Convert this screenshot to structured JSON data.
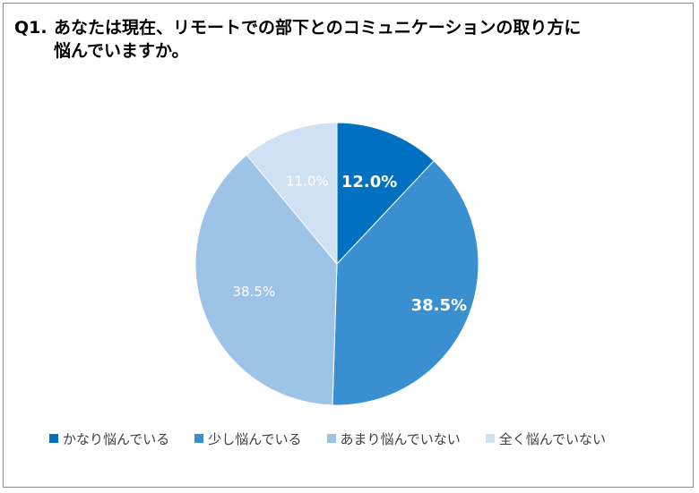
{
  "chart_data": {
    "type": "pie",
    "title_prefix": "Q1.",
    "title_line1": "あなたは現在、リモートでの部下とのコミュニケーションの取り方に",
    "title_line2": "悩んでいますか。",
    "slices": [
      {
        "label": "かなり悩んでいる",
        "value": 12.0,
        "value_label": "12.0%",
        "color": "#0070c0",
        "label_color": "#ffffff",
        "label_bold": true
      },
      {
        "label": "少し悩んでいる",
        "value": 38.5,
        "value_label": "38.5%",
        "color": "#3a8fd0",
        "label_color": "#ffffff",
        "label_bold": true
      },
      {
        "label": "あまり悩んでいない",
        "value": 38.5,
        "value_label": "38.5%",
        "color": "#9dc3e6",
        "label_color": "#ffffff",
        "label_bold": false
      },
      {
        "label": "全く悩んでいない",
        "value": 11.0,
        "value_label": "11.0%",
        "color": "#cfe1f3",
        "label_color": "#ffffff",
        "label_bold": false
      }
    ],
    "legend_position": "bottom"
  }
}
